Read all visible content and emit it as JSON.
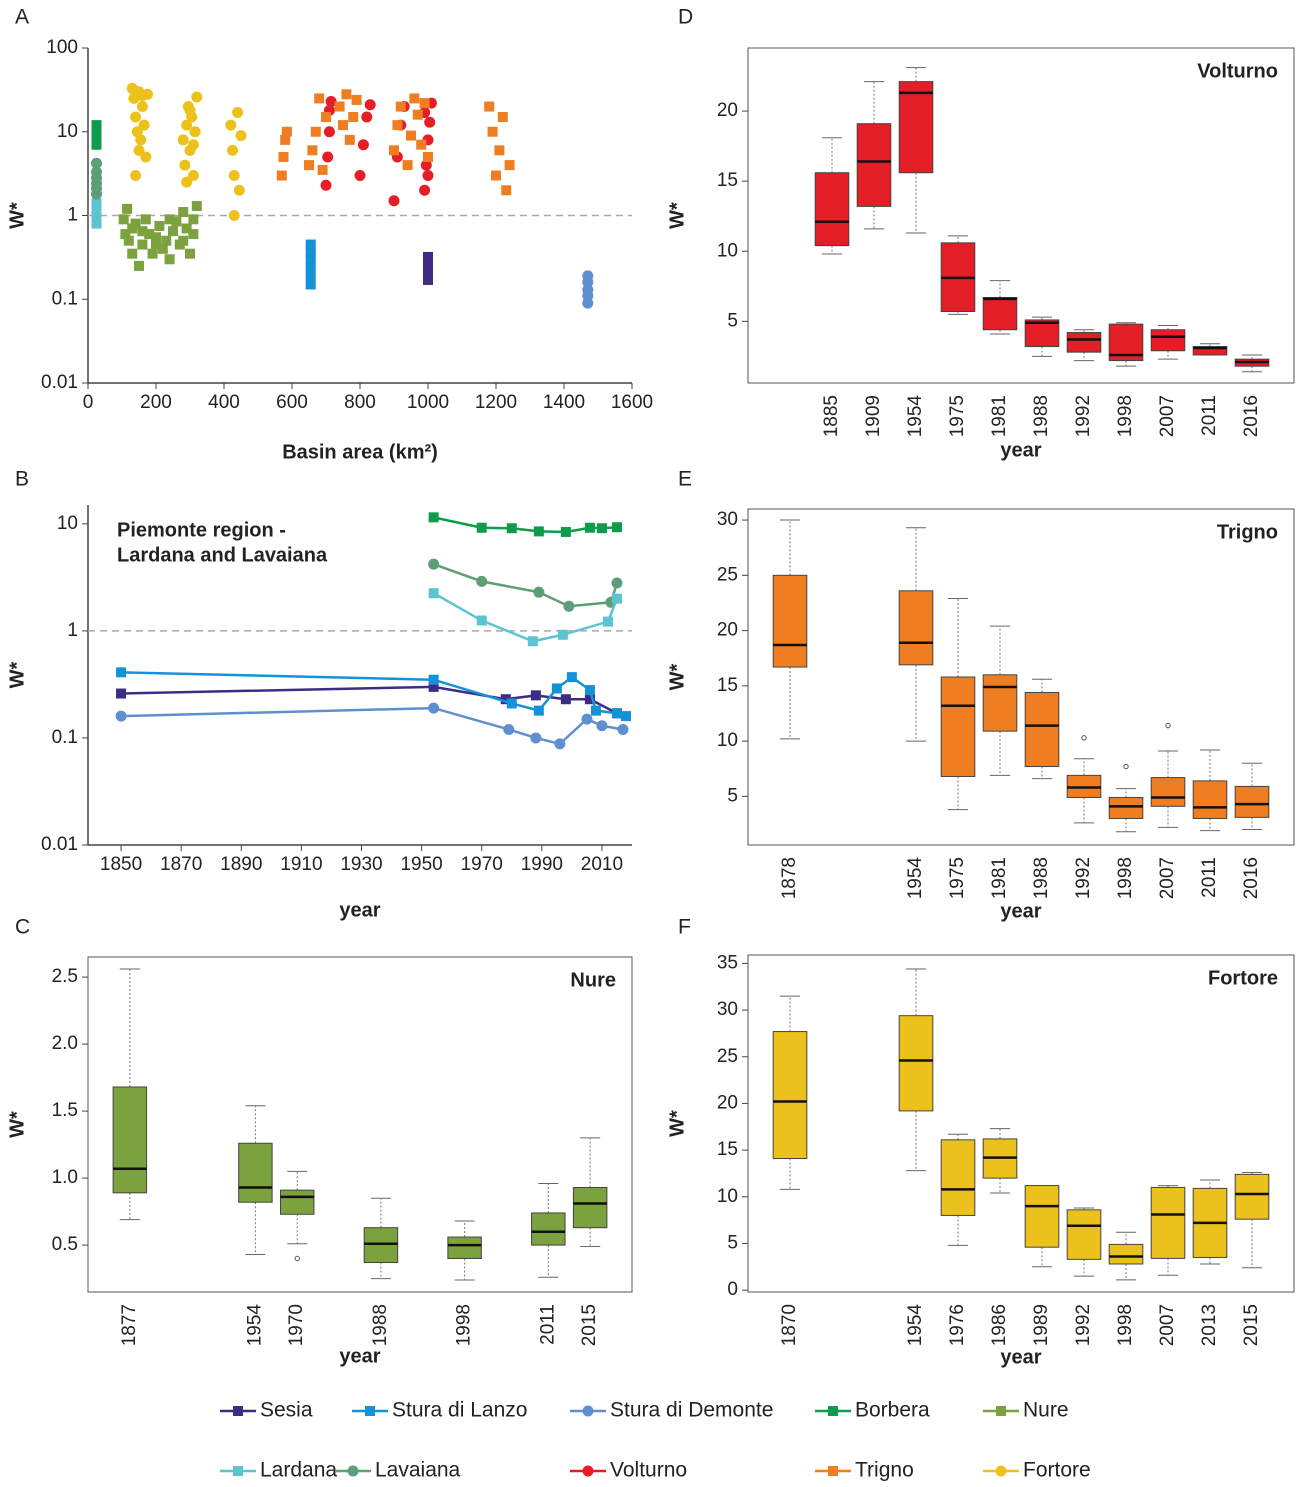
{
  "chart_data": [
    {
      "panel": "A",
      "type": "scatter",
      "ylabel": "W*",
      "xlabel": "Basin area (km²)",
      "log_y": true,
      "xlim": [
        0,
        1600
      ],
      "xticks": [
        0,
        200,
        400,
        600,
        800,
        1000,
        1200,
        1400,
        1600
      ],
      "ylim": [
        0.01,
        100
      ],
      "yticks": [
        100,
        10,
        1,
        0.1,
        0.01
      ],
      "hline": 1,
      "series": [
        {
          "name": "Sesia",
          "color": "#3d2b84",
          "marker": "square",
          "x": [
            1000,
            1000,
            1000,
            1000,
            1000
          ],
          "values": [
            0.17,
            0.2,
            0.24,
            0.28,
            0.32
          ]
        },
        {
          "name": "Stura di Lanzo",
          "color": "#1392d8",
          "marker": "square",
          "x": [
            655,
            655,
            655,
            655,
            655,
            655
          ],
          "values": [
            0.15,
            0.19,
            0.24,
            0.3,
            0.37,
            0.45
          ]
        },
        {
          "name": "Stura di Demonte",
          "color": "#5f8fce",
          "marker": "circle",
          "x": [
            1470,
            1470,
            1470,
            1470,
            1470
          ],
          "values": [
            0.09,
            0.11,
            0.13,
            0.16,
            0.19
          ]
        },
        {
          "name": "Borbera",
          "color": "#0f9b4c",
          "marker": "square",
          "x": [
            25,
            25,
            25,
            25,
            25,
            25
          ],
          "values": [
            7,
            8,
            9,
            10,
            11,
            12
          ]
        },
        {
          "name": "Nure",
          "color": "#7ba23f",
          "marker": "square",
          "x": [
            105,
            110,
            115,
            120,
            130,
            140,
            150,
            160,
            170,
            180,
            190,
            200,
            210,
            220,
            230,
            240,
            250,
            260,
            270,
            280,
            290,
            300,
            310,
            320,
            130,
            160,
            200,
            240,
            280,
            310
          ],
          "values": [
            0.9,
            0.6,
            1.2,
            0.5,
            0.7,
            0.8,
            0.25,
            0.45,
            0.9,
            0.6,
            0.35,
            0.55,
            0.75,
            0.4,
            0.5,
            0.3,
            0.65,
            0.85,
            0.45,
            1.1,
            0.7,
            0.35,
            0.9,
            1.3,
            0.35,
            0.65,
            0.45,
            0.9,
            0.5,
            0.6
          ]
        },
        {
          "name": "Lardana",
          "color": "#5cc4d1",
          "marker": "square",
          "x": [
            25,
            25,
            25,
            25
          ],
          "values": [
            0.8,
            0.95,
            1.15,
            1.4
          ]
        },
        {
          "name": "Lavaiana",
          "color": "#5c9f76",
          "marker": "circle",
          "x": [
            25,
            25,
            25,
            25,
            25,
            25
          ],
          "values": [
            1.8,
            2.1,
            2.4,
            2.8,
            3.3,
            4.2
          ]
        },
        {
          "name": "Volturno",
          "color": "#e31e26",
          "marker": "circle",
          "x": [
            700,
            705,
            710,
            710,
            715,
            800,
            810,
            820,
            830,
            900,
            910,
            920,
            930,
            990,
            995,
            1000,
            1005,
            1010,
            1000,
            990
          ],
          "values": [
            2.3,
            5,
            10,
            18,
            23,
            3,
            7,
            15,
            21,
            1.5,
            5,
            12,
            20,
            2,
            4,
            8,
            13,
            22,
            3,
            17
          ]
        },
        {
          "name": "Trigno",
          "color": "#ef7e22",
          "marker": "square",
          "x": [
            570,
            575,
            580,
            585,
            650,
            660,
            670,
            680,
            690,
            700,
            740,
            750,
            760,
            770,
            780,
            790,
            900,
            910,
            920,
            940,
            950,
            960,
            970,
            980,
            990,
            1000,
            1180,
            1190,
            1200,
            1210,
            1220,
            1230,
            1240
          ],
          "values": [
            3,
            5,
            8,
            10,
            4,
            6,
            10,
            25,
            3.5,
            15,
            20,
            12,
            28,
            8,
            15,
            24,
            6,
            12,
            20,
            4,
            9,
            25,
            16,
            7,
            22,
            5,
            20,
            10,
            3,
            6,
            15,
            2,
            4
          ]
        },
        {
          "name": "Fortore",
          "color": "#edc11b",
          "marker": "circle",
          "x": [
            130,
            135,
            140,
            145,
            150,
            155,
            160,
            165,
            170,
            175,
            140,
            150,
            160,
            280,
            285,
            290,
            295,
            300,
            305,
            310,
            315,
            320,
            290,
            300,
            310,
            420,
            425,
            430,
            440,
            445,
            450,
            430
          ],
          "values": [
            33,
            25,
            15,
            10,
            30,
            8,
            20,
            12,
            5,
            28,
            3,
            6,
            27,
            8,
            4,
            12,
            20,
            6,
            15,
            3,
            10,
            26,
            2.5,
            18,
            7,
            12,
            6,
            3,
            17,
            2,
            9,
            1
          ]
        }
      ]
    },
    {
      "panel": "B",
      "type": "line",
      "ylabel": "W*",
      "xlabel": "year",
      "log_y": true,
      "annotation": [
        "Piemonte region -",
        "Lardana  and Lavaiana"
      ],
      "xlim": [
        1839,
        2020
      ],
      "xticks": [
        1850,
        1870,
        1890,
        1910,
        1930,
        1950,
        1970,
        1990,
        2010
      ],
      "ylim": [
        0.01,
        15
      ],
      "yticks": [
        10,
        1,
        0.1,
        0.01
      ],
      "hline": 1,
      "series": [
        {
          "name": "Borbera",
          "color": "#0f9b4c",
          "marker": "square",
          "x": [
            1954,
            1970,
            1980,
            1989,
            1998,
            2006,
            2010,
            2015
          ],
          "values": [
            11.5,
            9.2,
            9.1,
            8.5,
            8.4,
            9.2,
            9.1,
            9.3
          ]
        },
        {
          "name": "Lavaiana",
          "color": "#5c9f76",
          "marker": "circle",
          "x": [
            1954,
            1970,
            1989,
            1999,
            2013,
            2015
          ],
          "values": [
            4.2,
            2.9,
            2.3,
            1.7,
            1.85,
            2.8
          ]
        },
        {
          "name": "Lardana",
          "color": "#5cc4d1",
          "marker": "square",
          "x": [
            1954,
            1970,
            1987,
            1997,
            2012,
            2015
          ],
          "values": [
            2.25,
            1.25,
            0.8,
            0.92,
            1.22,
            2.0
          ]
        },
        {
          "name": "Sesia",
          "color": "#3d2b84",
          "marker": "square",
          "x": [
            1850,
            1954,
            1978,
            1988,
            1998,
            2006,
            2015
          ],
          "values": [
            0.26,
            0.3,
            0.23,
            0.25,
            0.23,
            0.23,
            0.17
          ]
        },
        {
          "name": "Stura di Lanzo",
          "color": "#1392d8",
          "marker": "square",
          "x": [
            1850,
            1954,
            1980,
            1989,
            1995,
            2000,
            2006,
            2008,
            2015,
            2018
          ],
          "values": [
            0.41,
            0.35,
            0.21,
            0.18,
            0.29,
            0.37,
            0.28,
            0.18,
            0.17,
            0.16
          ]
        },
        {
          "name": "Stura di Demonte",
          "color": "#5f8fce",
          "marker": "circle",
          "x": [
            1850,
            1954,
            1979,
            1988,
            1996,
            2005,
            2010,
            2017
          ],
          "values": [
            0.16,
            0.19,
            0.12,
            0.1,
            0.088,
            0.15,
            0.13,
            0.12
          ]
        }
      ]
    },
    {
      "panel": "C",
      "type": "box",
      "title": "Nure",
      "ylabel": "W*",
      "xlabel": "year",
      "color": "#7ba23f",
      "ylim": [
        0.15,
        2.65
      ],
      "yticks": [
        {
          "value": 0.5,
          "label": "0.5"
        },
        {
          "value": 1,
          "label": "1.0"
        },
        {
          "value": 1.5,
          "label": "1.5"
        },
        {
          "value": 2,
          "label": "2.0"
        },
        {
          "value": 2.5,
          "label": "2.5"
        }
      ],
      "categories": [
        "1877",
        null,
        null,
        "1954",
        "1970",
        null,
        "1988",
        null,
        "1998",
        null,
        "2011",
        "2015"
      ],
      "boxes": [
        {
          "min": 0.69,
          "q1": 0.89,
          "median": 1.07,
          "q3": 1.68,
          "max": 2.56
        },
        null,
        null,
        {
          "min": 0.43,
          "q1": 0.82,
          "median": 0.93,
          "q3": 1.26,
          "max": 1.54
        },
        {
          "min": 0.51,
          "q1": 0.73,
          "median": 0.86,
          "q3": 0.91,
          "max": 1.05,
          "outliers": [
            0.4
          ]
        },
        null,
        {
          "min": 0.25,
          "q1": 0.37,
          "median": 0.51,
          "q3": 0.63,
          "max": 0.85
        },
        null,
        {
          "min": 0.24,
          "q1": 0.4,
          "median": 0.5,
          "q3": 0.56,
          "max": 0.68
        },
        null,
        {
          "min": 0.26,
          "q1": 0.5,
          "median": 0.6,
          "q3": 0.74,
          "max": 0.96
        },
        {
          "min": 0.49,
          "q1": 0.63,
          "median": 0.81,
          "q3": 0.93,
          "max": 1.3
        }
      ]
    },
    {
      "panel": "D",
      "type": "box",
      "title": "Volturno",
      "ylabel": "W*",
      "xlabel": "year",
      "color": "#e31e26",
      "ylim": [
        0.6,
        24.5
      ],
      "yticks": [
        5,
        10,
        15,
        20
      ],
      "categories": [
        null,
        "1885",
        "1909",
        "1954",
        "1975",
        "1981",
        "1988",
        "1992",
        "1998",
        "2007",
        "2011",
        "2016"
      ],
      "boxes": [
        null,
        {
          "min": 9.8,
          "q1": 10.4,
          "median": 12.1,
          "q3": 15.6,
          "max": 18.1
        },
        {
          "min": 11.6,
          "q1": 13.2,
          "median": 16.4,
          "q3": 19.1,
          "max": 22.1
        },
        {
          "min": 11.3,
          "q1": 15.6,
          "median": 21.3,
          "q3": 22.1,
          "max": 23.1
        },
        {
          "min": 5.5,
          "q1": 5.7,
          "median": 8.1,
          "q3": 10.6,
          "max": 11.1
        },
        {
          "min": 4.1,
          "q1": 4.4,
          "median": 6.6,
          "q3": 6.7,
          "max": 7.9
        },
        {
          "min": 2.5,
          "q1": 3.2,
          "median": 4.9,
          "q3": 5.1,
          "max": 5.3
        },
        {
          "min": 2.2,
          "q1": 2.8,
          "median": 3.7,
          "q3": 4.2,
          "max": 4.4
        },
        {
          "min": 1.8,
          "q1": 2.2,
          "median": 2.6,
          "q3": 4.8,
          "max": 4.9
        },
        {
          "min": 2.3,
          "q1": 2.9,
          "median": 3.9,
          "q3": 4.4,
          "max": 4.7
        },
        {
          "min": 2.6,
          "q1": 2.6,
          "median": 3.1,
          "q3": 3.2,
          "max": 3.4
        },
        {
          "min": 1.4,
          "q1": 1.8,
          "median": 2.1,
          "q3": 2.3,
          "max": 2.6
        }
      ]
    },
    {
      "panel": "E",
      "type": "box",
      "title": "Trigno",
      "ylabel": "W*",
      "xlabel": "year",
      "color": "#ef7e22",
      "ylim": [
        0.6,
        31
      ],
      "yticks": [
        5,
        10,
        15,
        20,
        25,
        30
      ],
      "categories": [
        "1878",
        null,
        null,
        "1954",
        "1975",
        "1981",
        "1988",
        "1992",
        "1998",
        "2007",
        "2011",
        "2016"
      ],
      "boxes": [
        {
          "min": 10.2,
          "q1": 16.7,
          "median": 18.7,
          "q3": 25,
          "max": 30
        },
        null,
        null,
        {
          "min": 10,
          "q1": 16.9,
          "median": 18.9,
          "q3": 23.6,
          "max": 29.3
        },
        {
          "min": 3.8,
          "q1": 6.8,
          "median": 13.2,
          "q3": 15.8,
          "max": 22.9
        },
        {
          "min": 6.9,
          "q1": 10.9,
          "median": 14.9,
          "q3": 16,
          "max": 20.4
        },
        {
          "min": 6.6,
          "q1": 7.7,
          "median": 11.4,
          "q3": 14.4,
          "max": 15.6
        },
        {
          "min": 2.6,
          "q1": 4.9,
          "median": 5.8,
          "q3": 6.9,
          "max": 8.4,
          "outliers": [
            10.3
          ]
        },
        {
          "min": 1.8,
          "q1": 3,
          "median": 4.1,
          "q3": 4.9,
          "max": 5.7,
          "outliers": [
            7.7
          ]
        },
        {
          "min": 2.2,
          "q1": 4.1,
          "median": 4.9,
          "q3": 6.7,
          "max": 9.1,
          "outliers": [
            11.4
          ]
        },
        {
          "min": 1.9,
          "q1": 3,
          "median": 4,
          "q3": 6.4,
          "max": 9.2
        },
        {
          "min": 2,
          "q1": 3.1,
          "median": 4.3,
          "q3": 5.9,
          "max": 8
        }
      ]
    },
    {
      "panel": "F",
      "type": "box",
      "title": "Fortore",
      "ylabel": "W*",
      "xlabel": "year",
      "color": "#edc11b",
      "ylim": [
        -0.2,
        35.9
      ],
      "yticks": [
        0,
        5,
        10,
        15,
        20,
        25,
        30,
        35
      ],
      "categories": [
        "1870",
        null,
        null,
        "1954",
        "1976",
        "1986",
        "1989",
        "1992",
        "1998",
        "2007",
        "2013",
        "2015"
      ],
      "boxes": [
        {
          "min": 10.8,
          "q1": 14.1,
          "median": 20.2,
          "q3": 27.7,
          "max": 31.5
        },
        null,
        null,
        {
          "min": 12.8,
          "q1": 19.2,
          "median": 24.6,
          "q3": 29.4,
          "max": 34.4
        },
        {
          "min": 4.8,
          "q1": 8,
          "median": 10.8,
          "q3": 16.1,
          "max": 16.7
        },
        {
          "min": 10.4,
          "q1": 12,
          "median": 14.2,
          "q3": 16.2,
          "max": 17.3
        },
        {
          "min": 2.5,
          "q1": 4.6,
          "median": 9,
          "q3": 11.2,
          "max": 11.2
        },
        {
          "min": 1.5,
          "q1": 3.3,
          "median": 6.9,
          "q3": 8.6,
          "max": 8.8
        },
        {
          "min": 1.1,
          "q1": 2.8,
          "median": 3.6,
          "q3": 4.9,
          "max": 6.2
        },
        {
          "min": 1.6,
          "q1": 3.4,
          "median": 8.1,
          "q3": 11,
          "max": 11.2
        },
        {
          "min": 2.8,
          "q1": 3.5,
          "median": 7.2,
          "q3": 10.9,
          "max": 11.8
        },
        {
          "min": 2.4,
          "q1": 7.6,
          "median": 10.3,
          "q3": 12.4,
          "max": 12.6
        }
      ]
    }
  ]
}
